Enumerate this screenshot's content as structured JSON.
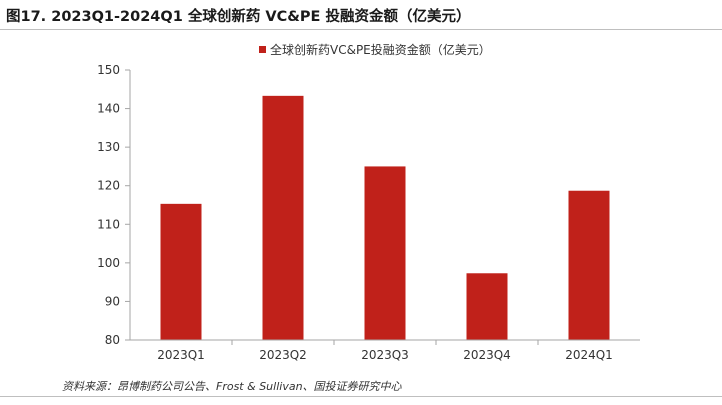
{
  "figure": {
    "title": "图17. 2023Q1-2024Q1 全球创新药 VC&PE 投融资金额（亿美元）",
    "source": "资料来源：昂博制药公司公告、Frost & Sullivan、国投证券研究中心"
  },
  "chart_data": {
    "type": "bar",
    "categories": [
      "2023Q1",
      "2023Q2",
      "2023Q3",
      "2023Q4",
      "2024Q1"
    ],
    "series": [
      {
        "name": "全球创新药VC&PE投融资金额（亿美元）",
        "values": [
          115.3,
          143.3,
          125,
          97.3,
          118.7
        ]
      }
    ],
    "ylim": [
      80,
      150
    ],
    "yticks": [
      80,
      90,
      100,
      110,
      120,
      130,
      140,
      150
    ],
    "xlabel": "",
    "ylabel": "",
    "grid": false,
    "legend_position": "top-center",
    "colors": {
      "bar": "#C0211A",
      "axis": "#a6a6a6"
    }
  }
}
